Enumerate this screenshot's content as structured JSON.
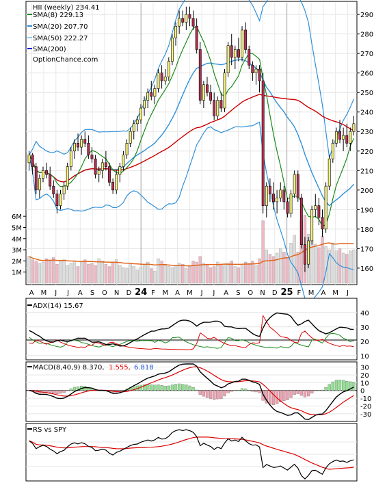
{
  "header": {
    "ticker_line": "HII (weekly) 234.41",
    "brand": "OptionChance.com"
  },
  "legend": [
    {
      "label": "SMA(8) 229.13",
      "color": "#1a8a1a"
    },
    {
      "label": "SMA(20) 207.70",
      "color": "#2f8fd8"
    },
    {
      "label": "SMA(50) 222.27",
      "color": "#8fd0f0"
    },
    {
      "label": "SMA(200)",
      "color": "#0000dd"
    }
  ],
  "indicators": {
    "adx_label": "ADX(14) 15.67",
    "macd_label": "MACD(8,40,9) 8.370,",
    "macd_signal_value": "1.555,",
    "macd_hist_value": "6.818",
    "rs_label": "RS vs SPY"
  },
  "colors": {
    "up_candle": "#f5f07a",
    "down_candle": "#b23050",
    "sma8": "#1a8a1a",
    "sma20_bands": "#2f8fd8",
    "sma50": "#cc0000",
    "volume_avg": "#e0661c",
    "adx": "#000000",
    "plus_di": "#1a8a1a",
    "minus_di": "#dd0000",
    "macd_signal": "#dd0000",
    "macd_hist_up": "#90e090",
    "macd_hist_down": "#f0a0b0"
  },
  "chart_data": {
    "type": "candlestick",
    "price_axis": {
      "ticks": [
        "160",
        "170",
        "180",
        "190",
        "200",
        "210",
        "220",
        "230",
        "240",
        "250",
        "260",
        "270",
        "280",
        "290"
      ],
      "range": [
        154,
        296
      ]
    },
    "volume_axis": {
      "ticks": [
        "1M",
        "2M",
        "3M",
        "4M",
        "5M",
        "6M"
      ],
      "range": [
        0,
        6.5
      ]
    },
    "x_axis": {
      "labels": [
        "A",
        "M",
        "J",
        "J",
        "A",
        "S",
        "O",
        "N",
        "D",
        "24",
        "F",
        "M",
        "A",
        "M",
        "J",
        "J",
        "A",
        "S",
        "O",
        "N",
        "D",
        "25",
        "F",
        "M",
        "A",
        "M",
        "J"
      ]
    },
    "adx_axis": {
      "ticks": [
        "10",
        "20",
        "30",
        "40"
      ],
      "range": [
        8,
        48
      ]
    },
    "macd_axis": {
      "ticks": [
        "30",
        "20",
        "10",
        "0",
        "-10",
        "-20",
        "-30"
      ],
      "range": [
        -38,
        34
      ]
    },
    "candles": [
      [
        214,
        220,
        210,
        218
      ],
      [
        218,
        219,
        208,
        212
      ],
      [
        212,
        214,
        198,
        200
      ],
      [
        200,
        208,
        196,
        206
      ],
      [
        206,
        212,
        204,
        210
      ],
      [
        210,
        214,
        206,
        208
      ],
      [
        208,
        212,
        200,
        202
      ],
      [
        202,
        205,
        196,
        198
      ],
      [
        198,
        200,
        188,
        192
      ],
      [
        192,
        200,
        190,
        198
      ],
      [
        198,
        204,
        195,
        202
      ],
      [
        202,
        214,
        200,
        212
      ],
      [
        212,
        222,
        210,
        220
      ],
      [
        220,
        226,
        216,
        224
      ],
      [
        224,
        229,
        220,
        222
      ],
      [
        222,
        228,
        218,
        226
      ],
      [
        226,
        230,
        222,
        224
      ],
      [
        224,
        228,
        216,
        218
      ],
      [
        218,
        222,
        214,
        216
      ],
      [
        216,
        218,
        206,
        208
      ],
      [
        208,
        212,
        204,
        210
      ],
      [
        210,
        216,
        206,
        214
      ],
      [
        214,
        220,
        210,
        212
      ],
      [
        212,
        214,
        202,
        204
      ],
      [
        204,
        206,
        198,
        200
      ],
      [
        200,
        210,
        198,
        208
      ],
      [
        208,
        214,
        204,
        212
      ],
      [
        212,
        220,
        210,
        218
      ],
      [
        218,
        226,
        216,
        224
      ],
      [
        224,
        232,
        222,
        230
      ],
      [
        230,
        236,
        226,
        234
      ],
      [
        234,
        238,
        230,
        236
      ],
      [
        236,
        244,
        234,
        242
      ],
      [
        242,
        248,
        238,
        246
      ],
      [
        246,
        252,
        242,
        250
      ],
      [
        250,
        256,
        246,
        248
      ],
      [
        248,
        254,
        244,
        252
      ],
      [
        252,
        262,
        250,
        260
      ],
      [
        260,
        264,
        252,
        256
      ],
      [
        256,
        262,
        254,
        258
      ],
      [
        258,
        268,
        256,
        266
      ],
      [
        266,
        280,
        264,
        278
      ],
      [
        278,
        286,
        274,
        284
      ],
      [
        284,
        292,
        280,
        288
      ],
      [
        288,
        292,
        284,
        286
      ],
      [
        286,
        294,
        282,
        290
      ],
      [
        290,
        294,
        284,
        288
      ],
      [
        288,
        292,
        282,
        284
      ],
      [
        284,
        288,
        270,
        272
      ],
      [
        272,
        276,
        244,
        246
      ],
      [
        246,
        256,
        242,
        254
      ],
      [
        254,
        258,
        248,
        250
      ],
      [
        250,
        254,
        244,
        246
      ],
      [
        246,
        250,
        236,
        238
      ],
      [
        238,
        248,
        236,
        246
      ],
      [
        246,
        250,
        240,
        242
      ],
      [
        242,
        262,
        240,
        260
      ],
      [
        260,
        276,
        258,
        274
      ],
      [
        274,
        280,
        264,
        268
      ],
      [
        268,
        274,
        262,
        272
      ],
      [
        272,
        278,
        266,
        268
      ],
      [
        268,
        284,
        266,
        282
      ],
      [
        282,
        286,
        270,
        272
      ],
      [
        272,
        274,
        262,
        264
      ],
      [
        264,
        266,
        256,
        260
      ],
      [
        260,
        264,
        254,
        262
      ],
      [
        262,
        264,
        250,
        256
      ],
      [
        256,
        260,
        188,
        192
      ],
      [
        192,
        204,
        186,
        202
      ],
      [
        202,
        206,
        194,
        198
      ],
      [
        198,
        204,
        190,
        194
      ],
      [
        194,
        200,
        188,
        196
      ],
      [
        196,
        204,
        194,
        200
      ],
      [
        200,
        202,
        190,
        194
      ],
      [
        194,
        196,
        186,
        188
      ],
      [
        188,
        200,
        186,
        198
      ],
      [
        198,
        210,
        196,
        208
      ],
      [
        208,
        210,
        194,
        196
      ],
      [
        196,
        198,
        170,
        172
      ],
      [
        172,
        176,
        158,
        162
      ],
      [
        162,
        176,
        160,
        174
      ],
      [
        174,
        192,
        172,
        190
      ],
      [
        190,
        198,
        186,
        192
      ],
      [
        192,
        196,
        182,
        186
      ],
      [
        186,
        190,
        176,
        180
      ],
      [
        180,
        204,
        178,
        202
      ],
      [
        202,
        218,
        200,
        216
      ],
      [
        216,
        226,
        214,
        224
      ],
      [
        224,
        232,
        222,
        230
      ],
      [
        230,
        236,
        224,
        226
      ],
      [
        226,
        232,
        220,
        228
      ],
      [
        228,
        234,
        222,
        224
      ],
      [
        224,
        232,
        220,
        230
      ],
      [
        230,
        238,
        228,
        234
      ]
    ],
    "volume": [
      2.4,
      2.1,
      2.0,
      1.8,
      1.9,
      2.2,
      2.0,
      2.3,
      1.7,
      2.0,
      2.1,
      1.6,
      1.8,
      2.0,
      1.5,
      1.9,
      2.1,
      1.7,
      1.8,
      1.6,
      2.2,
      2.0,
      1.7,
      1.5,
      1.9,
      2.1,
      1.6,
      1.4,
      1.3,
      1.8,
      1.5,
      1.2,
      1.4,
      1.6,
      1.9,
      1.3,
      1.1,
      2.2,
      2.0,
      1.6,
      1.5,
      1.4,
      1.6,
      1.8,
      1.7,
      1.3,
      1.5,
      2.0,
      1.9,
      2.4,
      1.8,
      1.6,
      1.4,
      1.5,
      1.9,
      1.7,
      1.6,
      1.8,
      2.0,
      1.5,
      1.4,
      1.6,
      1.9,
      1.8,
      2.0,
      1.6,
      2.2,
      5.6,
      3.0,
      2.6,
      2.4,
      2.7,
      3.1,
      2.8,
      2.3,
      3.6,
      4.3,
      2.8,
      5.6,
      6.1,
      4.4,
      3.9,
      3.5,
      3.2,
      4.2,
      3.3,
      3.0,
      3.6,
      2.9,
      3.1,
      2.7,
      2.6,
      2.9,
      3.0
    ],
    "series": [
      {
        "name": "SMA(8)",
        "last": 229.13
      },
      {
        "name": "SMA(20)",
        "last": 207.7
      },
      {
        "name": "SMA(50)",
        "last": 222.27
      },
      {
        "name": "SMA(200)"
      }
    ]
  }
}
